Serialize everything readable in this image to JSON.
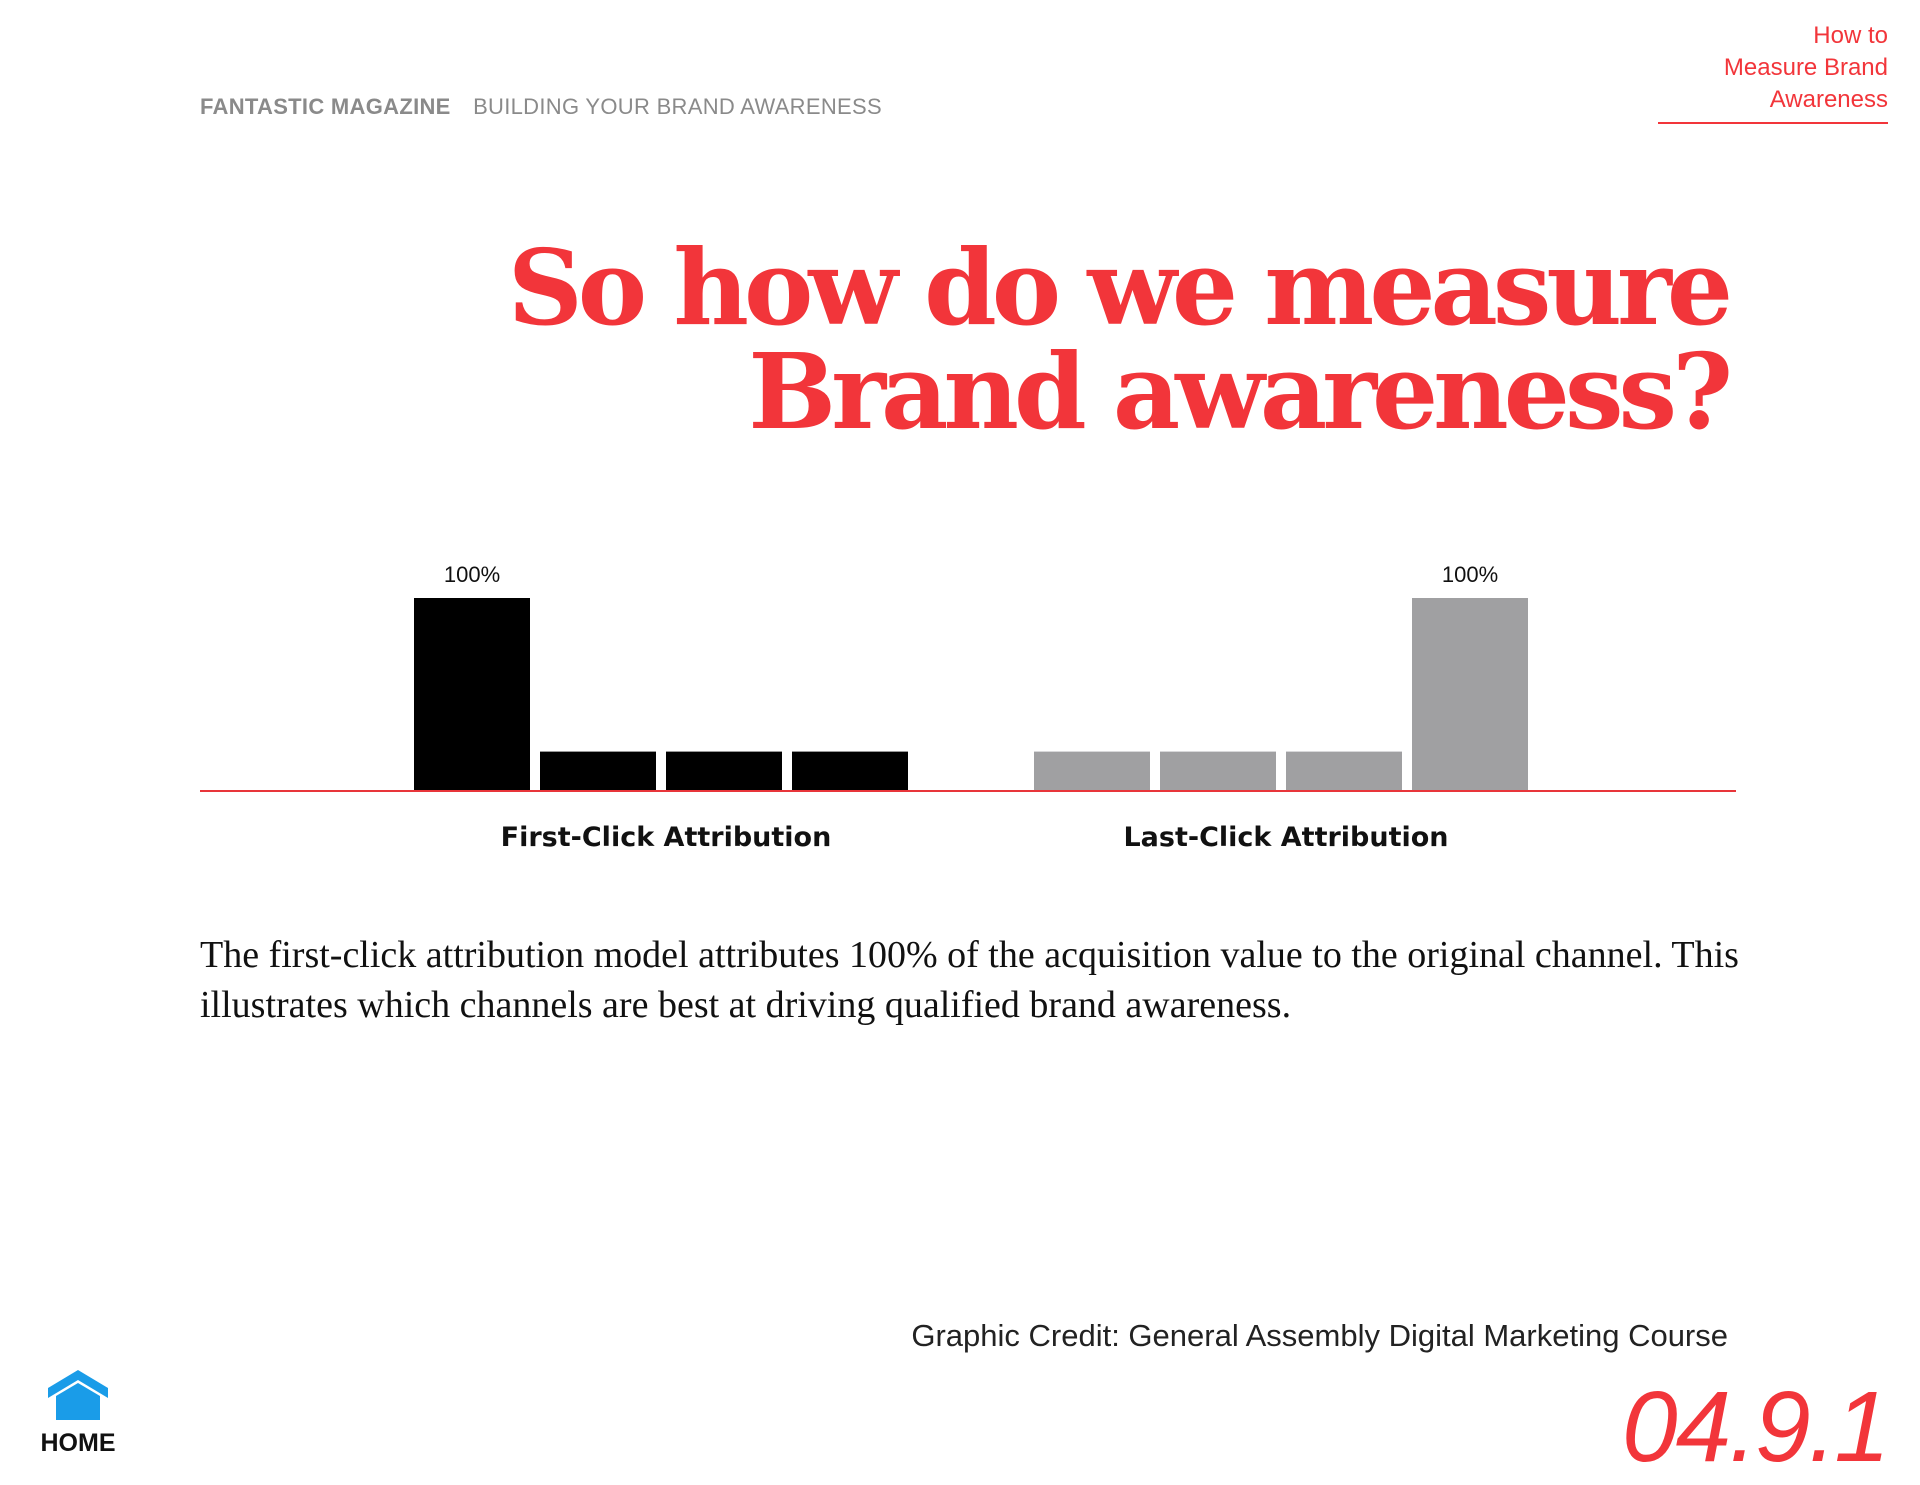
{
  "header": {
    "magazine": "FANTASTIC MAGAZINE",
    "section": "BUILDING YOUR BRAND AWARENESS"
  },
  "corner_nav": {
    "lines": [
      "How to",
      "Measure Brand",
      "Awareness"
    ]
  },
  "headline": {
    "line1": "So how do we measure",
    "line2": "Brand awareness?"
  },
  "chart_data": {
    "type": "bar",
    "groups": [
      {
        "name": "First-Click Attribution",
        "color": "#000000",
        "values": [
          100,
          20,
          20,
          20
        ],
        "labels": [
          "100%",
          "",
          "",
          ""
        ]
      },
      {
        "name": "Last-Click Attribution",
        "color": "#a0a0a2",
        "values": [
          20,
          20,
          20,
          100
        ],
        "labels": [
          "",
          "",
          "",
          "100%"
        ]
      }
    ],
    "baseline_color": "#e8353a",
    "ylim": [
      0,
      100
    ],
    "grid": false
  },
  "body": {
    "text": "The first-click attribution model attributes 100% of the acquisition value to the original channel. This illustrates which channels are best at driving qualified brand awareness."
  },
  "credit": "Graphic Credit: General Assembly Digital Marketing Course",
  "home": {
    "label": "HOME",
    "icon": "home-icon",
    "color": "#1a9ce8"
  },
  "page_number": "04.9.1"
}
